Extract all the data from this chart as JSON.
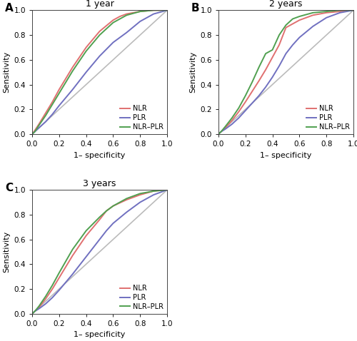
{
  "panel_A": {
    "title": "1 year",
    "NLR": {
      "fpr": [
        0.0,
        0.02,
        0.05,
        0.1,
        0.15,
        0.2,
        0.3,
        0.4,
        0.5,
        0.6,
        0.65,
        0.7,
        0.8,
        0.9,
        1.0
      ],
      "tpr": [
        0.0,
        0.03,
        0.08,
        0.17,
        0.26,
        0.36,
        0.54,
        0.7,
        0.83,
        0.92,
        0.95,
        0.97,
        0.99,
        1.0,
        1.0
      ],
      "color": "#E07070"
    },
    "PLR": {
      "fpr": [
        0.0,
        0.02,
        0.05,
        0.1,
        0.15,
        0.2,
        0.3,
        0.4,
        0.5,
        0.6,
        0.65,
        0.7,
        0.8,
        0.9,
        1.0
      ],
      "tpr": [
        0.0,
        0.02,
        0.05,
        0.1,
        0.16,
        0.23,
        0.36,
        0.5,
        0.63,
        0.74,
        0.78,
        0.82,
        0.91,
        0.97,
        1.0
      ],
      "color": "#7070C0"
    },
    "NLR-PLR": {
      "fpr": [
        0.0,
        0.02,
        0.05,
        0.1,
        0.15,
        0.2,
        0.3,
        0.4,
        0.5,
        0.6,
        0.65,
        0.7,
        0.8,
        0.9,
        1.0
      ],
      "tpr": [
        0.0,
        0.02,
        0.07,
        0.15,
        0.24,
        0.33,
        0.51,
        0.67,
        0.8,
        0.9,
        0.93,
        0.96,
        0.99,
        1.0,
        1.0
      ],
      "color": "#50A050"
    }
  },
  "panel_B": {
    "title": "2 years",
    "NLR": {
      "fpr": [
        0.0,
        0.02,
        0.05,
        0.1,
        0.15,
        0.2,
        0.3,
        0.35,
        0.4,
        0.45,
        0.5,
        0.55,
        0.6,
        0.7,
        0.8,
        0.9,
        1.0
      ],
      "tpr": [
        0.0,
        0.02,
        0.05,
        0.11,
        0.18,
        0.26,
        0.43,
        0.52,
        0.62,
        0.72,
        0.86,
        0.89,
        0.92,
        0.96,
        0.98,
        0.99,
        1.0
      ],
      "color": "#E07070"
    },
    "PLR": {
      "fpr": [
        0.0,
        0.02,
        0.05,
        0.1,
        0.15,
        0.2,
        0.3,
        0.35,
        0.4,
        0.45,
        0.5,
        0.55,
        0.6,
        0.7,
        0.8,
        0.9,
        1.0
      ],
      "tpr": [
        0.0,
        0.02,
        0.04,
        0.08,
        0.13,
        0.19,
        0.31,
        0.38,
        0.46,
        0.55,
        0.65,
        0.72,
        0.78,
        0.87,
        0.94,
        0.98,
        1.0
      ],
      "color": "#7070C0"
    },
    "NLR-PLR": {
      "fpr": [
        0.0,
        0.02,
        0.05,
        0.1,
        0.15,
        0.2,
        0.25,
        0.3,
        0.35,
        0.4,
        0.45,
        0.5,
        0.55,
        0.6,
        0.7,
        0.8,
        0.9,
        1.0
      ],
      "tpr": [
        0.0,
        0.02,
        0.06,
        0.13,
        0.21,
        0.31,
        0.42,
        0.54,
        0.65,
        0.68,
        0.8,
        0.88,
        0.93,
        0.95,
        0.98,
        0.99,
        1.0,
        1.0
      ],
      "color": "#50A050"
    }
  },
  "panel_C": {
    "title": "3 years",
    "NLR": {
      "fpr": [
        0.0,
        0.02,
        0.05,
        0.1,
        0.15,
        0.2,
        0.3,
        0.4,
        0.5,
        0.55,
        0.6,
        0.7,
        0.8,
        0.9,
        1.0
      ],
      "tpr": [
        0.0,
        0.02,
        0.05,
        0.12,
        0.2,
        0.29,
        0.47,
        0.63,
        0.76,
        0.83,
        0.87,
        0.92,
        0.96,
        0.99,
        1.0
      ],
      "color": "#E07070"
    },
    "PLR": {
      "fpr": [
        0.0,
        0.02,
        0.05,
        0.1,
        0.15,
        0.2,
        0.3,
        0.4,
        0.5,
        0.55,
        0.6,
        0.7,
        0.8,
        0.9,
        1.0
      ],
      "tpr": [
        0.0,
        0.02,
        0.04,
        0.08,
        0.13,
        0.19,
        0.32,
        0.46,
        0.6,
        0.67,
        0.73,
        0.82,
        0.9,
        0.96,
        1.0
      ],
      "color": "#7070C0"
    },
    "NLR-PLR": {
      "fpr": [
        0.0,
        0.02,
        0.05,
        0.1,
        0.15,
        0.2,
        0.3,
        0.4,
        0.5,
        0.55,
        0.6,
        0.7,
        0.8,
        0.9,
        1.0
      ],
      "tpr": [
        0.0,
        0.02,
        0.06,
        0.14,
        0.23,
        0.33,
        0.52,
        0.67,
        0.78,
        0.83,
        0.87,
        0.93,
        0.97,
        0.99,
        1.0
      ],
      "color": "#50A050"
    }
  },
  "diagonal": {
    "color": "#BBBBBB"
  },
  "legend_labels": [
    "NLR",
    "PLR",
    "NLR–PLR"
  ],
  "xlabel": "1– specificity",
  "ylabel": "Sensitivity",
  "xlim": [
    0.0,
    1.0
  ],
  "ylim": [
    0.0,
    1.0
  ],
  "xticks": [
    0.0,
    0.2,
    0.4,
    0.6,
    0.8,
    1.0
  ],
  "yticks": [
    0.0,
    0.2,
    0.4,
    0.6,
    0.8,
    1.0
  ],
  "bg_color": "#FFFFFF",
  "line_width": 1.4
}
